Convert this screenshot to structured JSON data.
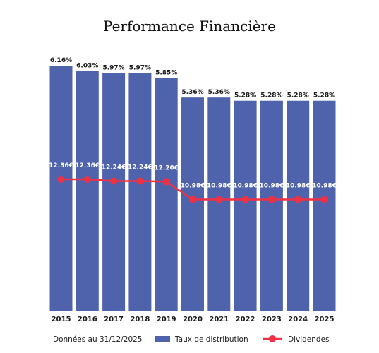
{
  "chart_data": {
    "type": "bar",
    "title": "Performance Financière",
    "categories": [
      "2015",
      "2016",
      "2017",
      "2018",
      "2019",
      "2020",
      "2021",
      "2022",
      "2023",
      "2024",
      "2025"
    ],
    "series": [
      {
        "name": "Taux de distribution",
        "type": "bar",
        "color": "#4f63ad",
        "values": [
          6.16,
          6.03,
          5.97,
          5.97,
          5.85,
          5.36,
          5.36,
          5.28,
          5.28,
          5.28,
          5.28
        ],
        "labels": [
          "6.16%",
          "6.03%",
          "5.97%",
          "5.97%",
          "5.85%",
          "5.36%",
          "5.36%",
          "5.28%",
          "5.28%",
          "5.28%",
          "5.28%"
        ]
      },
      {
        "name": "Dividendes",
        "type": "line",
        "color": "#ee3145",
        "values": [
          12.36,
          12.36,
          12.24,
          12.24,
          12.2,
          10.98,
          10.98,
          10.98,
          10.98,
          10.98,
          10.98
        ],
        "labels": [
          "12.36€",
          "12.36€",
          "12.24€",
          "12.24€",
          "12.20€",
          "10.98€",
          "10.98€",
          "10.98€",
          "10.98€",
          "10.98€",
          "10.98€"
        ]
      }
    ],
    "bar_ylim": [
      0,
      6.16
    ],
    "line_ylim": [
      0,
      22
    ],
    "legend": "bottom",
    "footnote": "Données au 31/12/2025",
    "grid": false
  }
}
